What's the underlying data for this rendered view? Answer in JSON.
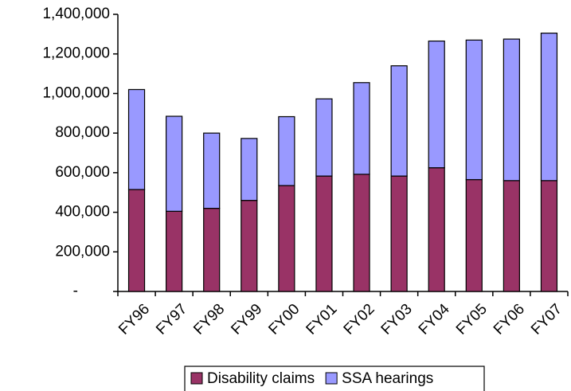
{
  "chart_data": {
    "type": "stacked_bar",
    "categories": [
      "FY96",
      "FY97",
      "FY98",
      "FY99",
      "FY00",
      "FY01",
      "FY02",
      "FY03",
      "FY04",
      "FY05",
      "FY06",
      "FY07"
    ],
    "series": [
      {
        "name": "Disability claims",
        "color": "#993366",
        "values": [
          515000,
          405000,
          420000,
          460000,
          535000,
          583000,
          592000,
          583000,
          625000,
          565000,
          560000,
          560000
        ]
      },
      {
        "name": "SSA hearings",
        "color": "#9999ff",
        "values": [
          505000,
          480000,
          380000,
          313000,
          348000,
          390000,
          463000,
          557000,
          640000,
          705000,
          715000,
          745000
        ]
      }
    ],
    "ylim": [
      0,
      1400000
    ],
    "yticks": [
      {
        "value": 0,
        "label": "-"
      },
      {
        "value": 200000,
        "label": "200,000"
      },
      {
        "value": 400000,
        "label": "400,000"
      },
      {
        "value": 600000,
        "label": "600,000"
      },
      {
        "value": 800000,
        "label": "800,000"
      },
      {
        "value": 1000000,
        "label": "1,000,000"
      },
      {
        "value": 1200000,
        "label": "1,200,000"
      },
      {
        "value": 1400000,
        "label": "1,400,000"
      }
    ],
    "grid": false,
    "legend": "bottom"
  }
}
